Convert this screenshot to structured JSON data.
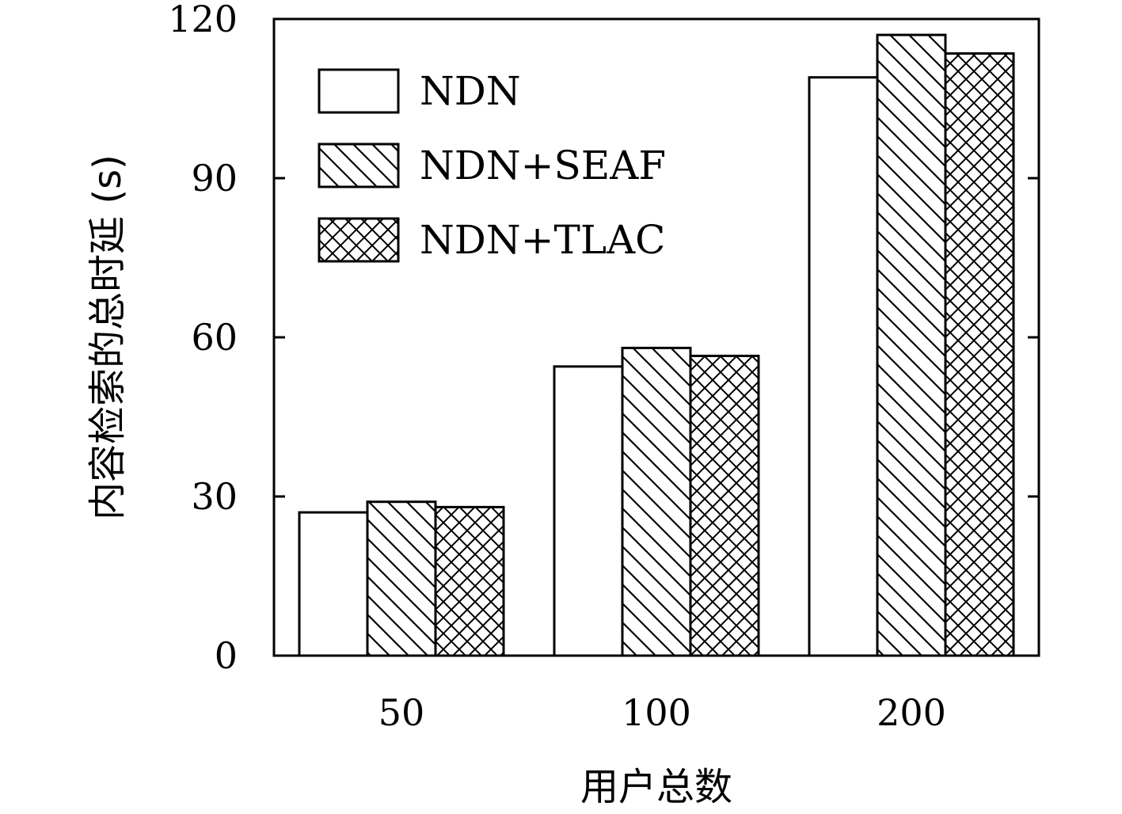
{
  "chart_data": {
    "type": "bar",
    "categories": [
      "50",
      "100",
      "200"
    ],
    "series": [
      {
        "name": "NDN",
        "values": [
          27,
          54.5,
          109
        ],
        "pattern": "none"
      },
      {
        "name": "NDN+SEAF",
        "values": [
          29,
          58,
          117
        ],
        "pattern": "diagonal"
      },
      {
        "name": "NDN+TLAC",
        "values": [
          28,
          56.5,
          113.5
        ],
        "pattern": "crosshatch"
      }
    ],
    "xlabel": "用户总数",
    "ylabel": "内容检索的总时延 (s)",
    "ylim": [
      0,
      120
    ],
    "yticks": [
      0,
      30,
      60,
      90,
      120
    ],
    "grid": false,
    "legend_position": "top-left",
    "colors": {
      "stroke": "#000000",
      "fill": "#ffffff"
    }
  }
}
